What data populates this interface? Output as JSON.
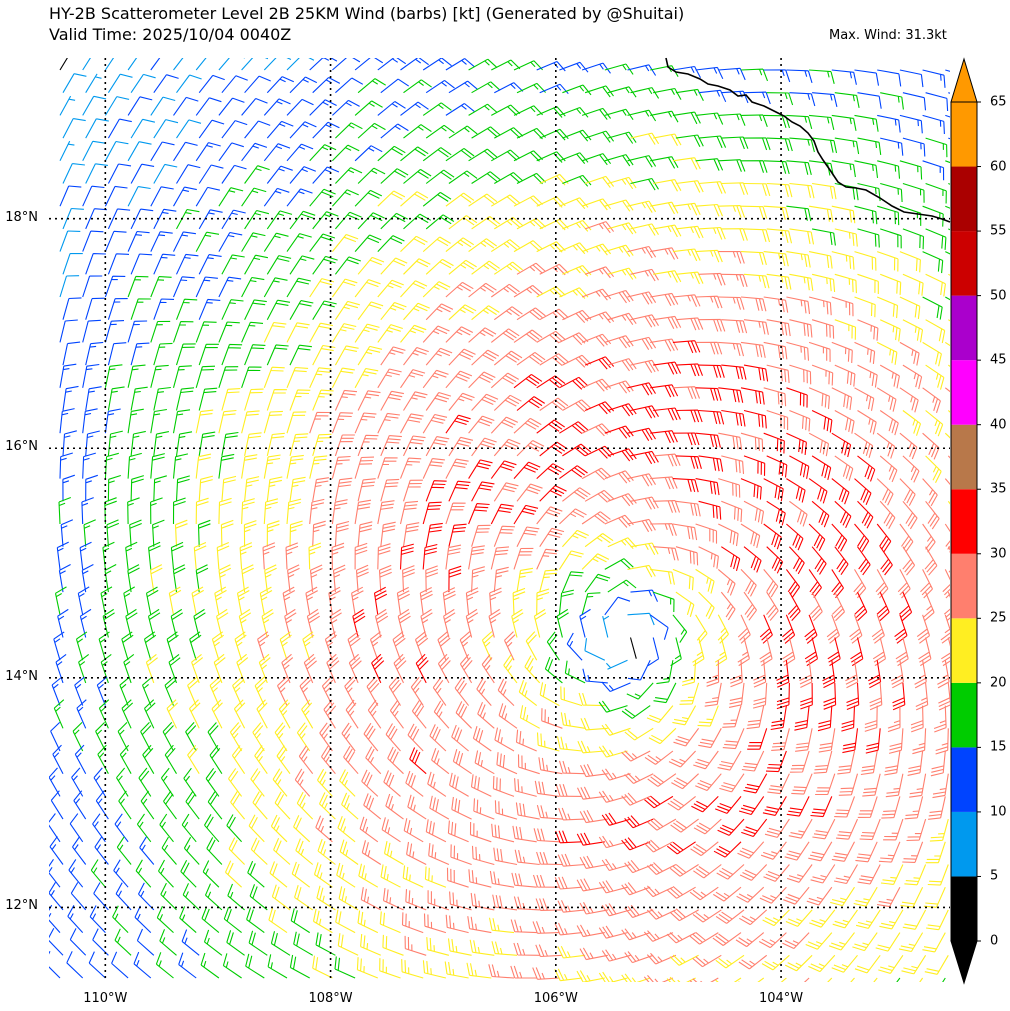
{
  "header": {
    "title_line1": "HY-2B Scatterometer Level 2B 25KM Wind (barbs) [kt] (Generated by @Shuitai)",
    "title_line2": "Valid Time: 2025/10/04 0040Z",
    "max_wind": "Max. Wind: 31.3kt"
  },
  "axes": {
    "lat_labels": [
      "18°N",
      "16°N",
      "14°N",
      "12°N"
    ],
    "lat_values": [
      18,
      16,
      14,
      12
    ],
    "lon_labels": [
      "110°W",
      "108°W",
      "106°W",
      "104°W"
    ],
    "lon_values": [
      -110,
      -108,
      -106,
      -104
    ],
    "lon_range": [
      -110.5,
      -102.5
    ],
    "lat_range": [
      11.35,
      19.4
    ]
  },
  "colorbar": {
    "tick_labels": [
      "0",
      "5",
      "10",
      "15",
      "20",
      "25",
      "30",
      "35",
      "40",
      "45",
      "50",
      "55",
      "60",
      "65"
    ],
    "bins": [
      {
        "from": 0,
        "to": 5,
        "color": "#000000"
      },
      {
        "from": 5,
        "to": 10,
        "color": "#0099ee"
      },
      {
        "from": 10,
        "to": 15,
        "color": "#0044ff"
      },
      {
        "from": 15,
        "to": 20,
        "color": "#00cc00"
      },
      {
        "from": 20,
        "to": 25,
        "color": "#ffee22"
      },
      {
        "from": 25,
        "to": 30,
        "color": "#ff7f6e"
      },
      {
        "from": 30,
        "to": 35,
        "color": "#ff0000"
      },
      {
        "from": 35,
        "to": 40,
        "color": "#b8784a"
      },
      {
        "from": 40,
        "to": 45,
        "color": "#ff00ff"
      },
      {
        "from": 45,
        "to": 50,
        "color": "#aa00cc"
      },
      {
        "from": 50,
        "to": 55,
        "color": "#cc0000"
      },
      {
        "from": 55,
        "to": 60,
        "color": "#aa0000"
      },
      {
        "from": 60,
        "to": 65,
        "color": "#ff9900"
      }
    ],
    "under_color": "#000000",
    "over_color": "#ff9900"
  },
  "wind_field": {
    "center_lon": -105.4,
    "center_lat": 14.35,
    "max_wind_kt": 31.3,
    "units": "kt"
  }
}
